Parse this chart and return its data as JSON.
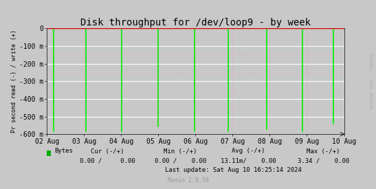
{
  "title": "Disk throughput for /dev/loop9 - by week",
  "ylabel": "Pr second read (-) / write (+)",
  "background_color": "#c8c8c8",
  "plot_background_color": "#c8c8c8",
  "grid_color": "#ffffff",
  "minor_grid_color": "#e8a0a0",
  "ylim": [
    -600,
    0
  ],
  "yticks": [
    0,
    -100,
    -200,
    -300,
    -400,
    -500,
    -600
  ],
  "ytick_labels": [
    "0",
    "-100 m",
    "-200 m",
    "-300 m",
    "-400 m",
    "-500 m",
    "-600 m"
  ],
  "x_start": 0,
  "x_end": 8,
  "xtick_positions": [
    0,
    1,
    2,
    3,
    4,
    5,
    6,
    7,
    8
  ],
  "xtick_labels": [
    "02 Aug",
    "03 Aug",
    "04 Aug",
    "05 Aug",
    "06 Aug",
    "07 Aug",
    "08 Aug",
    "09 Aug",
    "10 Aug"
  ],
  "spike_positions": [
    0.18,
    1.05,
    2.02,
    3.0,
    3.98,
    4.88,
    5.92,
    6.88,
    7.72
  ],
  "spike_depths": [
    -582,
    -582,
    -582,
    -558,
    -582,
    -582,
    -572,
    -582,
    -540
  ],
  "line_color": "#00ee00",
  "top_line_color": "#cc0000",
  "right_label": "RRDTOOL / TOBI OETIKER",
  "legend_label": "Bytes",
  "legend_color": "#00aa00",
  "footer_line1_left": "Bytes",
  "footer_line1_c1": "Cur (-/+)",
  "footer_line1_c2": "Min (-/+)",
  "footer_line1_c3": "Avg (-/+)",
  "footer_line1_c4": "Max (-/+)",
  "footer_line2_c1": "0.00 /     0.00",
  "footer_line2_c2": "0.00 /    0.00",
  "footer_line2_c3": "13.11m/    0.00",
  "footer_line2_c4": "3.34 /    0.00",
  "footer_last_update": "Last update: Sat Aug 10 16:25:14 2024",
  "footer_munin": "Munin 2.0.56",
  "title_fontsize": 10,
  "axis_fontsize": 7,
  "footer_fontsize": 6.5,
  "munin_fontsize": 6
}
